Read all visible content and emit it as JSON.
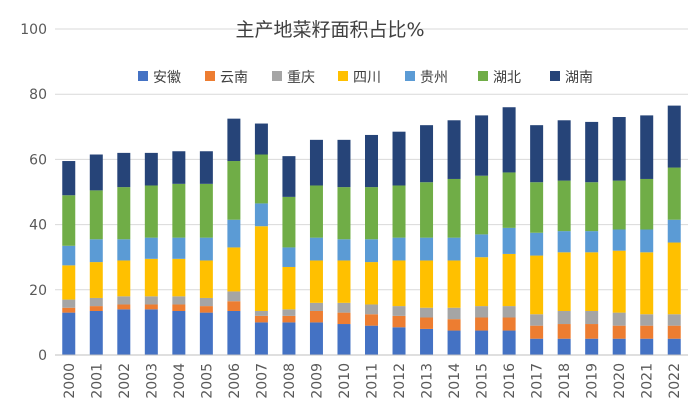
{
  "chart_data": {
    "type": "bar",
    "stacked": true,
    "title": "主产地菜籽面积占比%",
    "xlabel": "",
    "ylabel": "",
    "ylim": [
      0,
      100
    ],
    "yticks": [
      0,
      20,
      40,
      60,
      80,
      100
    ],
    "grid": true,
    "legend_position": "top",
    "categories": [
      "2000",
      "2001",
      "2002",
      "2003",
      "2004",
      "2005",
      "2006",
      "2007",
      "2008",
      "2009",
      "2010",
      "2011",
      "2012",
      "2013",
      "2014",
      "2015",
      "2016",
      "2017",
      "2018",
      "2019",
      "2020",
      "2021",
      "2022"
    ],
    "series": [
      {
        "name": "安徽",
        "color": "#4472C4",
        "values": [
          13,
          13.5,
          14,
          14,
          13.5,
          13,
          13.5,
          10,
          10,
          10,
          9.5,
          9,
          8.5,
          8,
          7.5,
          7.5,
          7.5,
          5,
          5,
          5,
          5,
          5,
          5
        ]
      },
      {
        "name": "云南",
        "color": "#ED7D31",
        "values": [
          1.5,
          1.5,
          1.5,
          1.5,
          2,
          2,
          3,
          2,
          2,
          3.5,
          3.5,
          3.5,
          3.5,
          3.5,
          3.5,
          4,
          4,
          4,
          4.5,
          4.5,
          4,
          4,
          4
        ]
      },
      {
        "name": "重庆",
        "color": "#A5A5A5",
        "values": [
          2.5,
          2.5,
          2.5,
          2.5,
          2.5,
          2.5,
          3,
          1.5,
          2,
          2.5,
          3,
          3,
          3,
          3,
          3.5,
          3.5,
          3.5,
          3.5,
          4,
          4,
          4,
          3.5,
          3.5
        ]
      },
      {
        "name": "四川",
        "color": "#FFC000",
        "values": [
          10.5,
          11,
          11,
          11.5,
          11.5,
          11.5,
          13.5,
          26,
          13,
          13,
          13,
          13,
          14,
          14.5,
          14.5,
          15,
          16,
          18,
          18,
          18,
          19,
          19,
          22
        ]
      },
      {
        "name": "贵州",
        "color": "#5B9BD5",
        "values": [
          6,
          7,
          6.5,
          6.5,
          6.5,
          7,
          8.5,
          7,
          6,
          7,
          6.5,
          7,
          7,
          7,
          7,
          7,
          8,
          7,
          6.5,
          6.5,
          6.5,
          7,
          7
        ]
      },
      {
        "name": "湖北",
        "color": "#70AD47",
        "values": [
          15.5,
          15,
          16,
          16,
          16.5,
          16.5,
          18,
          15,
          15.5,
          16,
          16,
          16,
          16,
          17,
          18,
          18,
          17,
          15.5,
          15.5,
          15,
          15,
          15.5,
          16
        ]
      },
      {
        "name": "湖南",
        "color": "#264478",
        "values": [
          10.5,
          11,
          10.5,
          10,
          10,
          10,
          13,
          9.5,
          12.5,
          14,
          14.5,
          16,
          16.5,
          17.5,
          18,
          18.5,
          20,
          17.5,
          18.5,
          18.5,
          19.5,
          19.5,
          19
        ]
      }
    ]
  }
}
